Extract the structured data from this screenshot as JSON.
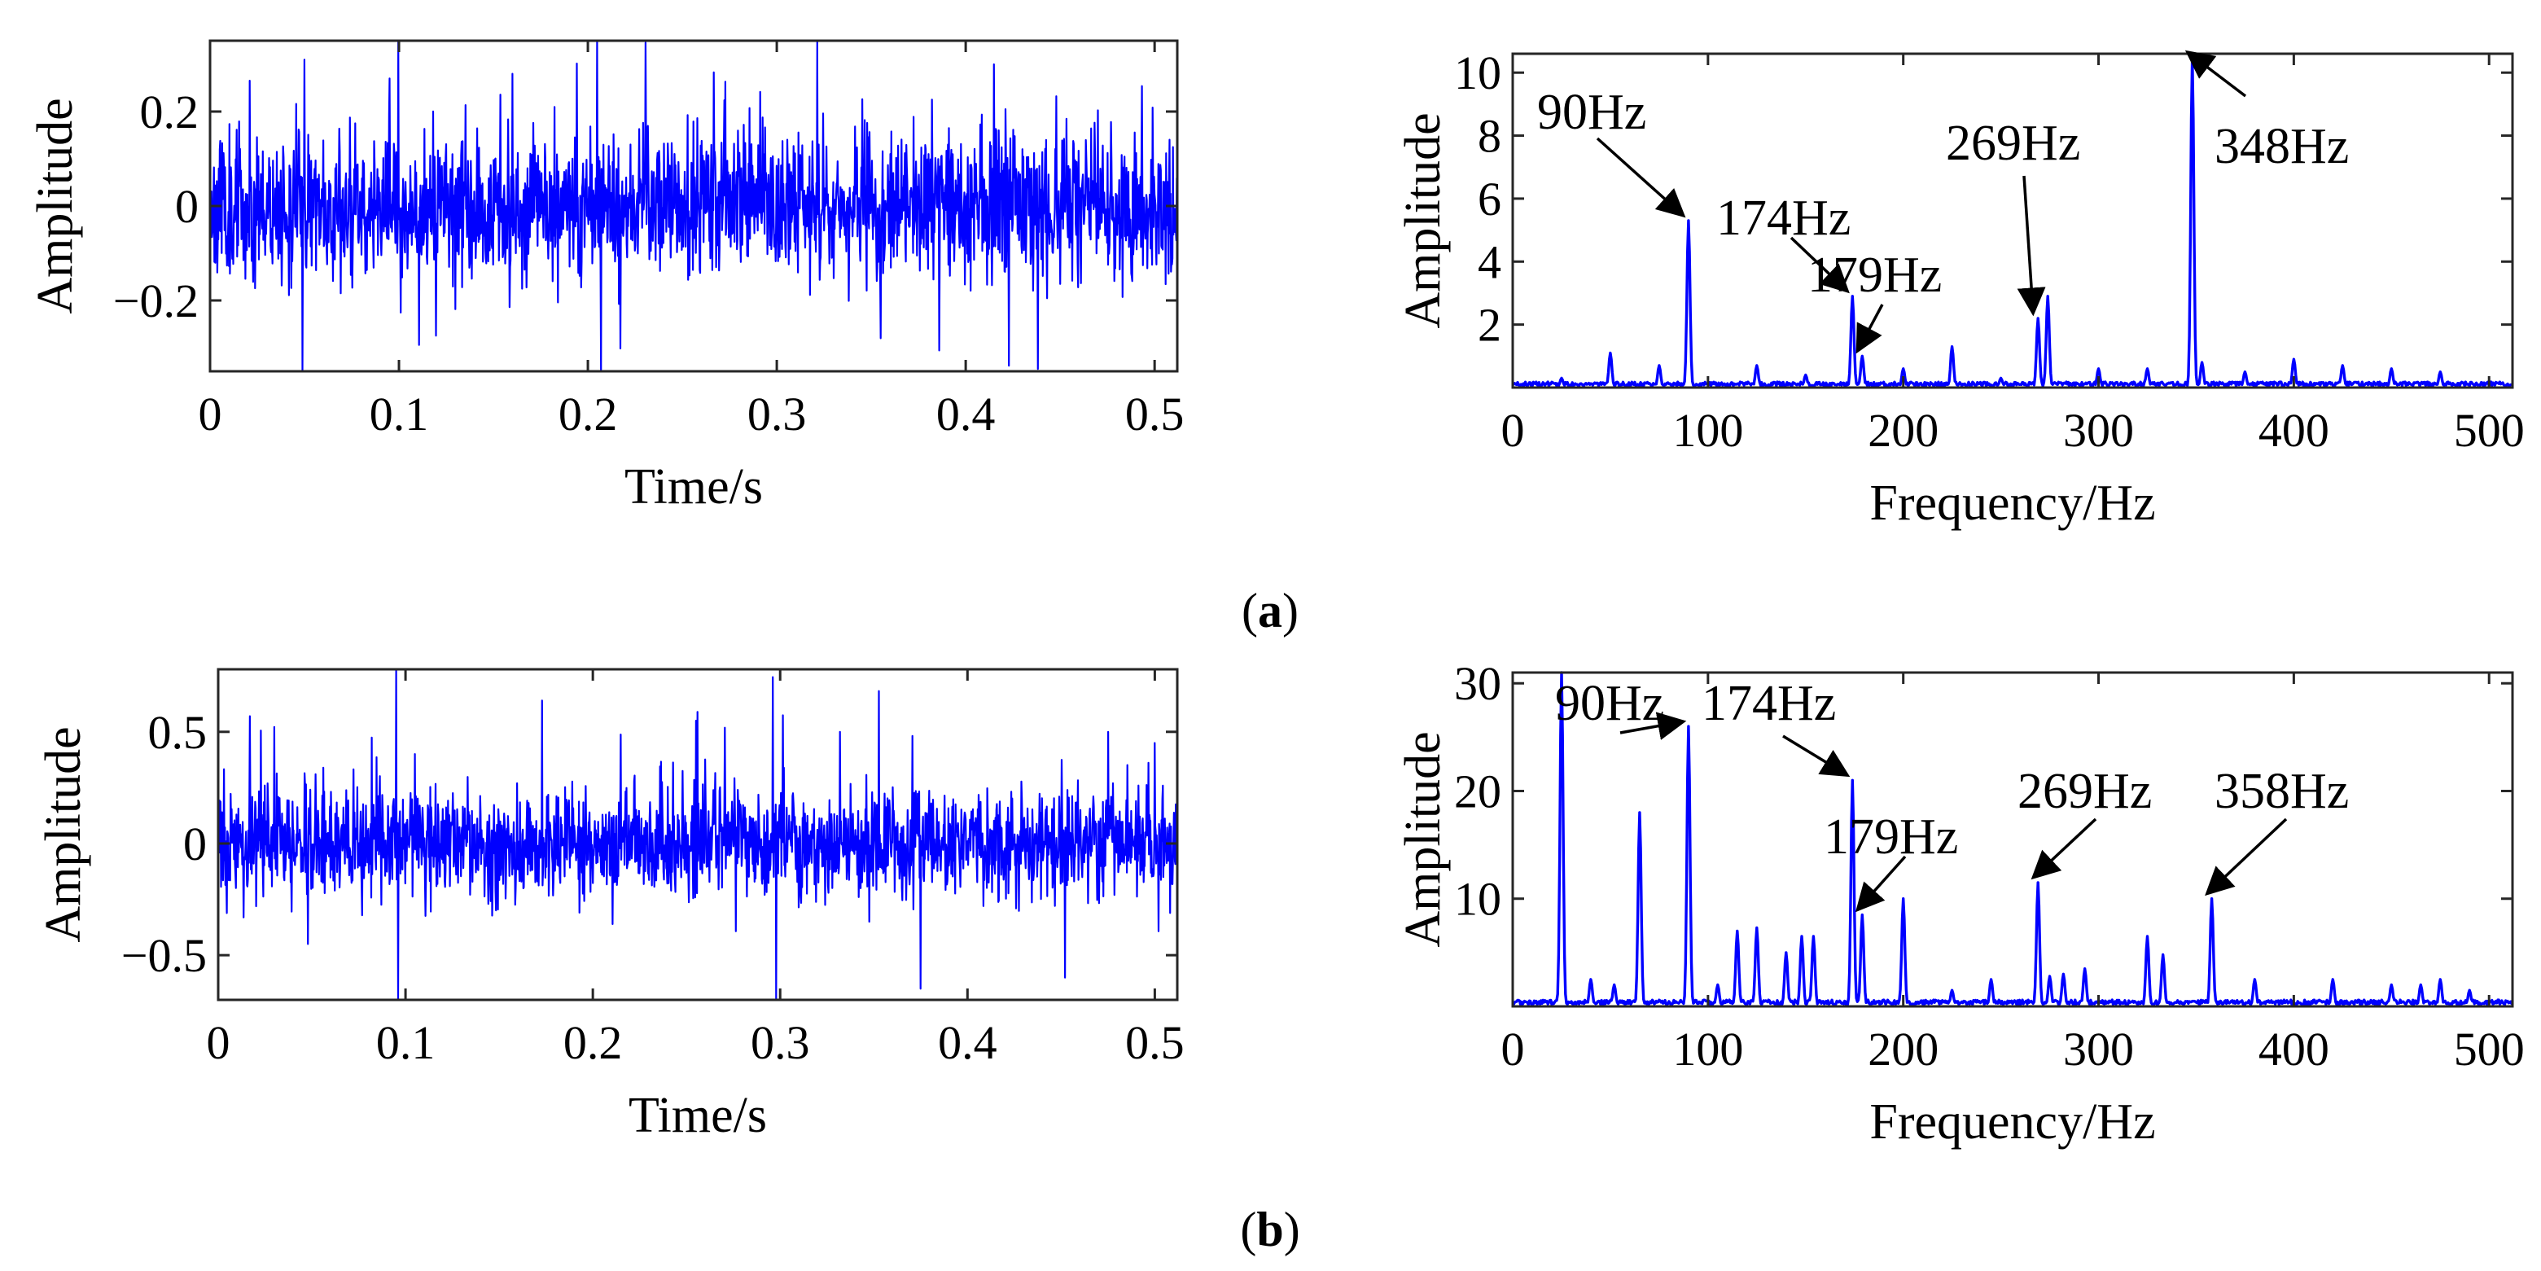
{
  "figure": {
    "panel_labels": [
      "(a)",
      "(b)"
    ],
    "panel_letters": [
      "a",
      "b"
    ]
  },
  "chart_data": [
    {
      "id": "a_time",
      "type": "line",
      "title": "",
      "xlabel": "Time/s",
      "ylabel": "Amplitude",
      "xlim": [
        0,
        0.512
      ],
      "ylim": [
        -0.35,
        0.35
      ],
      "xticks": [
        0,
        0.1,
        0.2,
        0.3,
        0.4,
        0.5
      ],
      "xtick_labels": [
        "0",
        "0.1",
        "0.2",
        "0.3",
        "0.4",
        "0.5"
      ],
      "yticks": [
        -0.2,
        0,
        0.2
      ],
      "ytick_labels": [
        "−0.2",
        "0",
        "0.2"
      ],
      "line_color": "#0000ff",
      "signal": {
        "duration": 0.512,
        "samples": 2000,
        "noise_sd": 0.075,
        "seed": 11,
        "spikes": [
          [
            0.049,
            -0.35
          ],
          [
            0.05,
            0.31
          ],
          [
            0.205,
            0.35
          ],
          [
            0.207,
            -0.35
          ],
          [
            0.16,
            0.28
          ],
          [
            0.415,
            0.3
          ],
          [
            0.095,
            0.27
          ],
          [
            0.355,
            -0.28
          ]
        ]
      },
      "annotations": []
    },
    {
      "id": "a_freq",
      "type": "line",
      "title": "",
      "xlabel": "Frequency/Hz",
      "ylabel": "Amplitude",
      "xlim": [
        0,
        512
      ],
      "ylim": [
        0,
        10.6
      ],
      "xticks": [
        0,
        100,
        200,
        300,
        400,
        500
      ],
      "xtick_labels": [
        "0",
        "100",
        "200",
        "300",
        "400",
        "500"
      ],
      "yticks": [
        2,
        4,
        6,
        8,
        10
      ],
      "ytick_labels": [
        "2",
        "4",
        "6",
        "8",
        "10"
      ],
      "line_color": "#0000ff",
      "peaks": [
        [
          25,
          0.3
        ],
        [
          50,
          1.1
        ],
        [
          75,
          0.7
        ],
        [
          90,
          5.3
        ],
        [
          125,
          0.7
        ],
        [
          150,
          0.4
        ],
        [
          174,
          2.9
        ],
        [
          179,
          1.0
        ],
        [
          200,
          0.6
        ],
        [
          225,
          1.3
        ],
        [
          250,
          0.3
        ],
        [
          269,
          2.2
        ],
        [
          274,
          2.9
        ],
        [
          300,
          0.6
        ],
        [
          325,
          0.6
        ],
        [
          348,
          10.5
        ],
        [
          353,
          0.8
        ],
        [
          375,
          0.5
        ],
        [
          400,
          0.9
        ],
        [
          425,
          0.7
        ],
        [
          450,
          0.6
        ],
        [
          475,
          0.5
        ]
      ],
      "noise_floor": 0.15,
      "annotations": [
        {
          "text": "90Hz",
          "x": 90,
          "y": 5.3
        },
        {
          "text": "174Hz",
          "x": 174,
          "y": 2.9
        },
        {
          "text": "179Hz",
          "x": 179,
          "y": 1.0
        },
        {
          "text": "269Hz",
          "x": 269,
          "y": 2.2
        },
        {
          "text": "348Hz",
          "x": 348,
          "y": 10.5
        }
      ]
    },
    {
      "id": "b_time",
      "type": "line",
      "title": "",
      "xlabel": "Time/s",
      "ylabel": "Amplitude",
      "xlim": [
        0,
        0.512
      ],
      "ylim": [
        -0.7,
        0.78
      ],
      "xticks": [
        0,
        0.1,
        0.2,
        0.3,
        0.4,
        0.5
      ],
      "xtick_labels": [
        "0",
        "0.1",
        "0.2",
        "0.3",
        "0.4",
        "0.5"
      ],
      "yticks": [
        -0.5,
        0,
        0.5
      ],
      "ytick_labels": [
        "−0.5",
        "0",
        "0.5"
      ],
      "line_color": "#0000ff",
      "signal": {
        "duration": 0.512,
        "samples": 2000,
        "noise_sd": 0.12,
        "seed": 29,
        "spikes": [
          [
            0.017,
            0.57
          ],
          [
            0.048,
            -0.45
          ],
          [
            0.095,
            0.78
          ],
          [
            0.096,
            -0.7
          ],
          [
            0.173,
            0.64
          ],
          [
            0.298,
            -0.7
          ],
          [
            0.375,
            -0.65
          ],
          [
            0.452,
            -0.6
          ],
          [
            0.475,
            0.5
          ],
          [
            0.5,
            0.45
          ],
          [
            0.255,
            0.55
          ],
          [
            0.332,
            0.5
          ]
        ]
      },
      "annotations": []
    },
    {
      "id": "b_freq",
      "type": "line",
      "title": "",
      "xlabel": "Frequency/Hz",
      "ylabel": "Amplitude",
      "xlim": [
        0,
        512
      ],
      "ylim": [
        0,
        31
      ],
      "xticks": [
        0,
        100,
        200,
        300,
        400,
        500
      ],
      "xtick_labels": [
        "0",
        "100",
        "200",
        "300",
        "400",
        "500"
      ],
      "yticks": [
        10,
        20,
        30
      ],
      "ytick_labels": [
        "10",
        "20",
        "30"
      ],
      "line_color": "#0000ff",
      "peaks": [
        [
          25,
          31
        ],
        [
          40,
          2.5
        ],
        [
          52,
          2.0
        ],
        [
          65,
          18
        ],
        [
          90,
          26
        ],
        [
          105,
          2.0
        ],
        [
          115,
          7
        ],
        [
          125,
          7.3
        ],
        [
          140,
          5.0
        ],
        [
          148,
          6.5
        ],
        [
          154,
          6.5
        ],
        [
          174,
          21
        ],
        [
          179,
          8.5
        ],
        [
          200,
          10
        ],
        [
          225,
          1.5
        ],
        [
          245,
          2.5
        ],
        [
          269,
          11.5
        ],
        [
          275,
          2.8
        ],
        [
          282,
          3.0
        ],
        [
          293,
          3.5
        ],
        [
          325,
          6.5
        ],
        [
          333,
          4.8
        ],
        [
          358,
          10
        ],
        [
          380,
          2.5
        ],
        [
          420,
          2.5
        ],
        [
          450,
          2.0
        ],
        [
          465,
          2.0
        ],
        [
          475,
          2.5
        ],
        [
          490,
          1.5
        ]
      ],
      "noise_floor": 0.5,
      "annotations": [
        {
          "text": "90Hz",
          "x": 90,
          "y": 26
        },
        {
          "text": "174Hz",
          "x": 174,
          "y": 21
        },
        {
          "text": "179Hz",
          "x": 179,
          "y": 8.5
        },
        {
          "text": "269Hz",
          "x": 269,
          "y": 11.5
        },
        {
          "text": "358Hz",
          "x": 358,
          "y": 10
        }
      ]
    }
  ]
}
